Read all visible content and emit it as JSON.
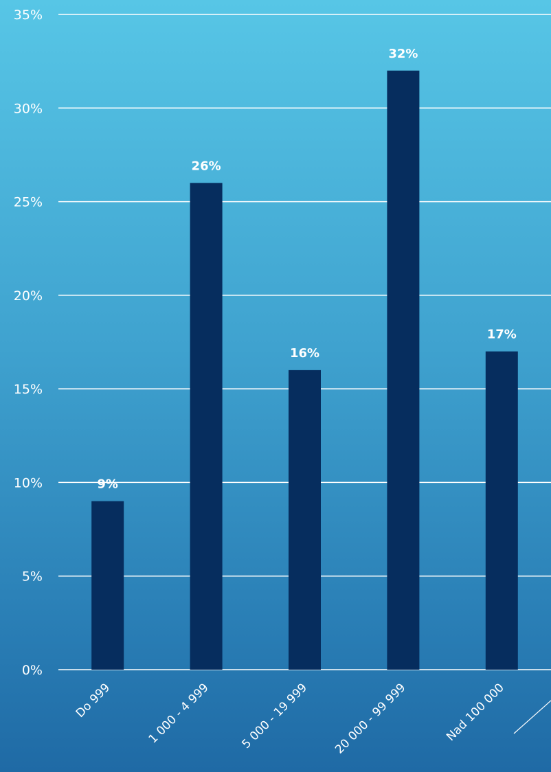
{
  "chart_data": {
    "type": "bar",
    "categories": [
      "Do 999",
      "1 000 - 4 999",
      "5 000 - 19 999",
      "20 000 - 99 999",
      "Nad 100 000"
    ],
    "values": [
      9,
      26,
      16,
      32,
      17
    ],
    "data_labels": [
      "9%",
      "26%",
      "16%",
      "32%",
      "17%"
    ],
    "ylim": [
      0,
      35
    ],
    "yticks": [
      0,
      5,
      10,
      15,
      20,
      25,
      30,
      35
    ],
    "ytick_labels": [
      "0%",
      "5%",
      "10%",
      "15%",
      "20%",
      "25%",
      "30%",
      "35%"
    ],
    "grid": true,
    "legend": "none",
    "bar_color": "#062d5e",
    "gridline_color": "#ffffff",
    "title": "",
    "xlabel": "",
    "ylabel": ""
  }
}
